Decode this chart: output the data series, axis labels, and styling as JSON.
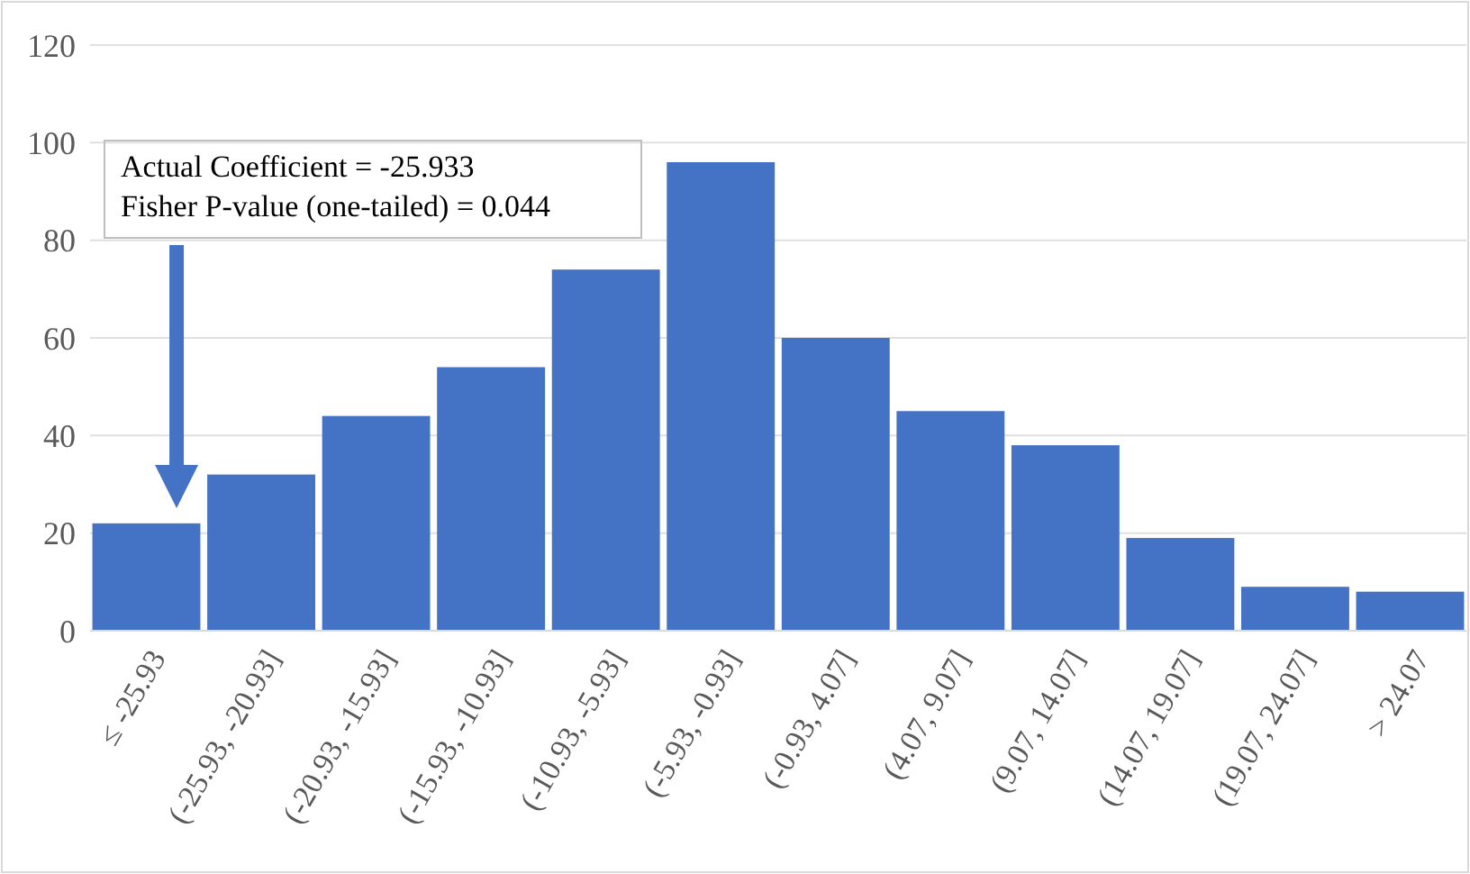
{
  "chart_data": {
    "type": "bar",
    "categories": [
      "≤ -25.93",
      "(-25.93, -20.93]",
      "(-20.93, -15.93]",
      "(-15.93, -10.93]",
      "(-10.93, -5.93]",
      "(-5.93, -0.93]",
      "(-0.93, 4.07]",
      "(4.07, 9.07]",
      "(9.07, 14.07]",
      "(14.07, 19.07]",
      "(19.07, 24.07]",
      "> 24.07"
    ],
    "values": [
      22,
      32,
      44,
      54,
      74,
      96,
      60,
      45,
      38,
      19,
      9,
      8
    ],
    "color": "#4472c4",
    "ylim": [
      0,
      120
    ],
    "yticks": [
      0,
      20,
      40,
      60,
      80,
      100,
      120
    ],
    "grid": "y",
    "annotations": [
      "Actual Coefficient = -25.933",
      "Fisher P-value (one-tailed) = 0.044"
    ]
  }
}
